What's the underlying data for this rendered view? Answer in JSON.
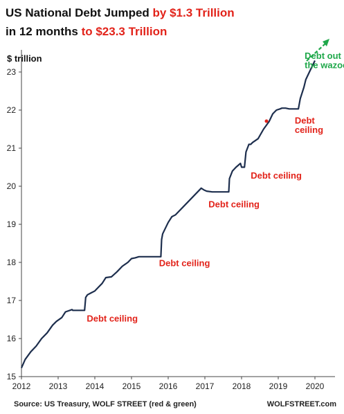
{
  "title": {
    "line1_black": "US National Debt Jumped ",
    "line1_red": "by $1.3 Trillion",
    "line2_black": "in 12 months ",
    "line2_red": "to $23.3 Trillion"
  },
  "colors": {
    "series": "#1d2e4d",
    "red": "#e2231a",
    "green": "#1fa84a",
    "axis": "#444444",
    "text": "#111111"
  },
  "source": "Source: US Treasury, WOLF STREET (red & green)",
  "brand": "WOLFSTREET.com",
  "chart_data": {
    "type": "line",
    "ylabel": "$ trillion",
    "xlabel": "",
    "xlim": [
      2012,
      2020
    ],
    "ylim": [
      15,
      23.5
    ],
    "x_ticks": [
      "2012",
      "2013",
      "2014",
      "2015",
      "2016",
      "2017",
      "2018",
      "2019",
      "2020"
    ],
    "y_ticks": [
      "15",
      "16",
      "17",
      "18",
      "19",
      "20",
      "21",
      "22",
      "23"
    ],
    "grid": false,
    "series": [
      {
        "x": [
          2012.0,
          2012.1,
          2012.25,
          2012.4,
          2012.55,
          2012.7,
          2012.85,
          2012.95,
          2013.1,
          2013.2,
          2013.38,
          2013.4,
          2013.5,
          2013.6,
          2013.72,
          2013.75,
          2013.8,
          2013.9,
          2014.0,
          2014.1,
          2014.2,
          2014.3,
          2014.45,
          2014.6,
          2014.75,
          2014.9,
          2015.0,
          2015.1,
          2015.2,
          2015.5,
          2015.8,
          2015.82,
          2015.85,
          2015.9,
          2016.0,
          2016.1,
          2016.2,
          2016.3,
          2016.5,
          2016.7,
          2016.9,
          2016.98,
          2017.05,
          2017.2,
          2017.5,
          2017.65,
          2017.67,
          2017.75,
          2017.85,
          2017.97,
          2018.0,
          2018.08,
          2018.12,
          2018.2,
          2018.25,
          2018.3,
          2018.45,
          2018.6,
          2018.75,
          2018.85,
          2018.95,
          2019.05,
          2019.1,
          2019.2,
          2019.3,
          2019.5,
          2019.55,
          2019.6,
          2019.7,
          2019.75,
          2019.85,
          2020.0
        ],
        "y": [
          15.23,
          15.45,
          15.65,
          15.8,
          16.0,
          16.15,
          16.35,
          16.45,
          16.55,
          16.7,
          16.76,
          16.74,
          16.74,
          16.74,
          16.74,
          17.08,
          17.15,
          17.2,
          17.25,
          17.35,
          17.45,
          17.6,
          17.62,
          17.75,
          17.9,
          18.0,
          18.1,
          18.12,
          18.15,
          18.15,
          18.15,
          18.6,
          18.75,
          18.85,
          19.05,
          19.2,
          19.25,
          19.35,
          19.55,
          19.75,
          19.95,
          19.9,
          19.87,
          19.85,
          19.85,
          19.85,
          20.2,
          20.4,
          20.5,
          20.6,
          20.5,
          20.5,
          20.9,
          21.1,
          21.1,
          21.15,
          21.25,
          21.5,
          21.7,
          21.9,
          22.0,
          22.03,
          22.05,
          22.05,
          22.03,
          22.03,
          22.03,
          22.3,
          22.6,
          22.8,
          23.0,
          23.3
        ]
      }
    ],
    "annotations": [
      {
        "text": "Debt ceiling",
        "x": 2013.78,
        "y": 16.45,
        "color": "red"
      },
      {
        "text": "Debt ceiling",
        "x": 2015.75,
        "y": 17.9,
        "color": "red"
      },
      {
        "text": "Debt ceiling",
        "x": 2017.1,
        "y": 19.45,
        "color": "red"
      },
      {
        "text": "Debt ceiling",
        "x": 2018.25,
        "y": 20.2,
        "color": "red"
      },
      {
        "text": "Debt",
        "x": 2019.45,
        "y": 21.65,
        "color": "red"
      },
      {
        "text": "ceiling",
        "x": 2019.45,
        "y": 21.4,
        "color": "red"
      },
      {
        "text": "Debt out",
        "x": 2019.72,
        "y": 23.35,
        "color": "green"
      },
      {
        "text": "the wazoo",
        "x": 2019.72,
        "y": 23.1,
        "color": "green"
      }
    ]
  }
}
